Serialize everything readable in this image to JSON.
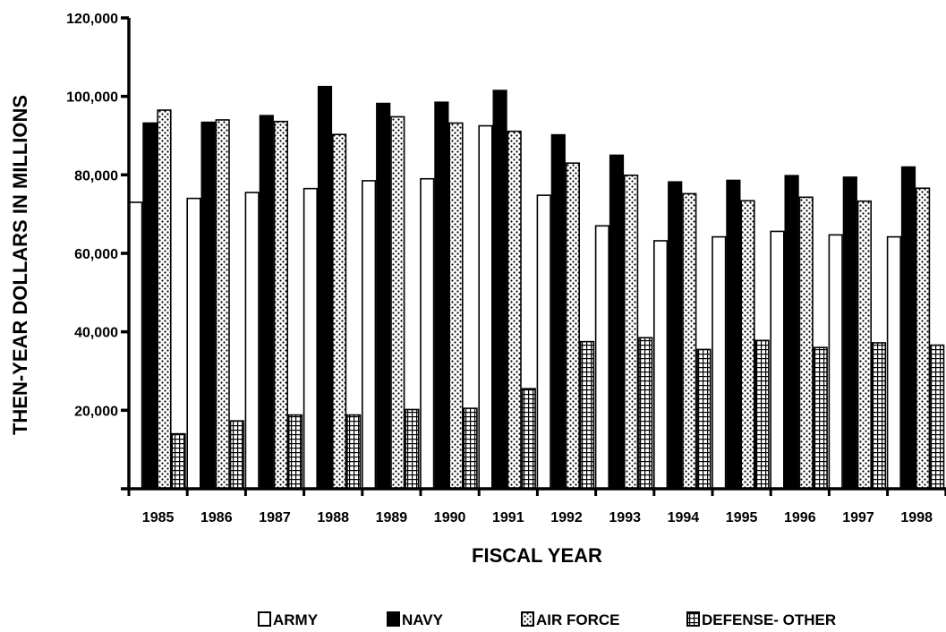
{
  "chart_data": {
    "type": "bar",
    "title": "",
    "xlabel": "FISCAL YEAR",
    "ylabel": "THEN-YEAR DOLLARS IN MILLIONS",
    "ylim": [
      0,
      120000
    ],
    "yticks": [
      0,
      20000,
      40000,
      60000,
      80000,
      100000,
      120000
    ],
    "ytick_labels": [
      "",
      "20,000",
      "40,000",
      "60,000",
      "80,000",
      "100,000",
      "120,000"
    ],
    "grid": false,
    "legend_position": "bottom",
    "categories": [
      "1985",
      "1986",
      "1987",
      "1988",
      "1989",
      "1990",
      "1991",
      "1992",
      "1993",
      "1994",
      "1995",
      "1996",
      "1997",
      "1998"
    ],
    "series": [
      {
        "name": "ARMY",
        "pattern": "white",
        "values": [
          73000,
          74000,
          75500,
          76500,
          78500,
          79000,
          92500,
          74800,
          67000,
          63200,
          64200,
          65600,
          64700,
          64200
        ]
      },
      {
        "name": "NAVY",
        "pattern": "black",
        "values": [
          93200,
          93400,
          95100,
          102500,
          98200,
          98500,
          101500,
          90200,
          85000,
          78200,
          78600,
          79800,
          79400,
          82000
        ]
      },
      {
        "name": "AIR FORCE",
        "pattern": "dots",
        "values": [
          96500,
          94000,
          93600,
          90300,
          94800,
          93200,
          91100,
          83000,
          79900,
          75200,
          73400,
          74300,
          73300,
          76600
        ]
      },
      {
        "name": "DEFENSE- OTHER",
        "pattern": "grid",
        "values": [
          14000,
          17300,
          18800,
          18800,
          20200,
          20500,
          25500,
          37500,
          38500,
          35500,
          37800,
          36000,
          37200,
          36600
        ]
      }
    ]
  }
}
